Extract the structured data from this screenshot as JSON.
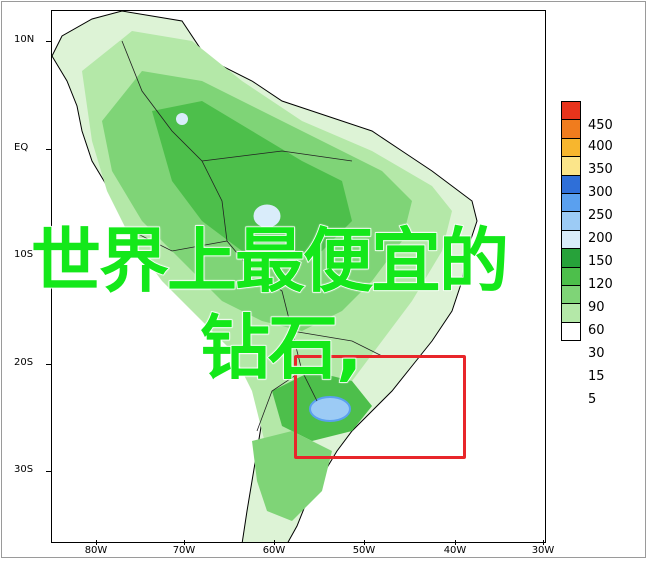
{
  "map": {
    "lat_labels": [
      "10N",
      "EQ",
      "10S",
      "20S",
      "30S"
    ],
    "lon_labels": [
      "80W",
      "70W",
      "60W",
      "50W",
      "40W",
      "30W"
    ]
  },
  "legend": {
    "values": [
      "450",
      "400",
      "350",
      "300",
      "250",
      "200",
      "150",
      "120",
      "90",
      "60",
      "30",
      "15",
      "5"
    ],
    "colors": [
      "#e8341c",
      "#f07c1e",
      "#f7b62e",
      "#fbe58a",
      "#2f6fd8",
      "#5aa0ef",
      "#9ccbf5",
      "#d9ecfa",
      "#27a23a",
      "#4dbf4b",
      "#7fd477",
      "#b4e8a8",
      "#ffffff"
    ]
  },
  "overlay": {
    "line1": "世界上最便宜的",
    "line2": "钻石,"
  },
  "colors": {
    "overlay_text": "#14e81a",
    "highlight_border": "#e8262a",
    "land_light": "#b4e8a8",
    "land_mid": "#7fd477",
    "land_dark": "#4dbf4b"
  }
}
